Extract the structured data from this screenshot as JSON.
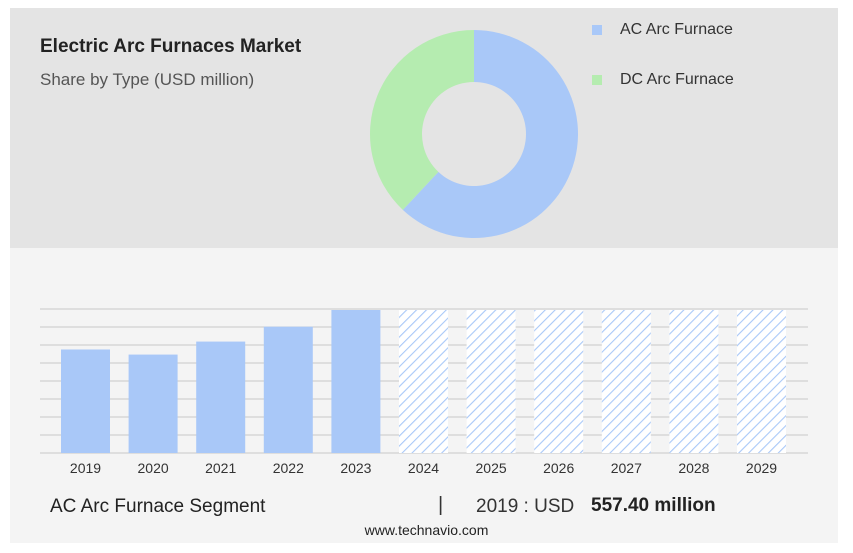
{
  "header": {
    "title": "Electric Arc Furnaces Market",
    "subtitle": "Share by Type (USD million)"
  },
  "legend": [
    {
      "label": "AC Arc Furnace",
      "color": "#a9c8f8"
    },
    {
      "label": "DC Arc Furnace",
      "color": "#b5ecb0"
    }
  ],
  "footer": {
    "segment_label": "AC Arc Furnace Segment",
    "separator": "|",
    "year_text": "2019 : USD",
    "value_text": "557.40 million"
  },
  "watermark": "www.technavio.com",
  "chart_data": [
    {
      "type": "pie",
      "donut": true,
      "slices": [
        {
          "label": "AC Arc Furnace",
          "value": 62,
          "color": "#a9c8f8"
        },
        {
          "label": "DC Arc Furnace",
          "value": 38,
          "color": "#b5ecb0"
        }
      ]
    },
    {
      "type": "bar",
      "categories": [
        "2019",
        "2020",
        "2021",
        "2022",
        "2023",
        "2024",
        "2025",
        "2026",
        "2027",
        "2028",
        "2029"
      ],
      "values": [
        557.4,
        530,
        600,
        680,
        770,
        null,
        null,
        null,
        null,
        null,
        null
      ],
      "forecast_start": "2024",
      "ylim": [
        0,
        770
      ],
      "grid": true,
      "color": "#a9c8f8"
    }
  ]
}
